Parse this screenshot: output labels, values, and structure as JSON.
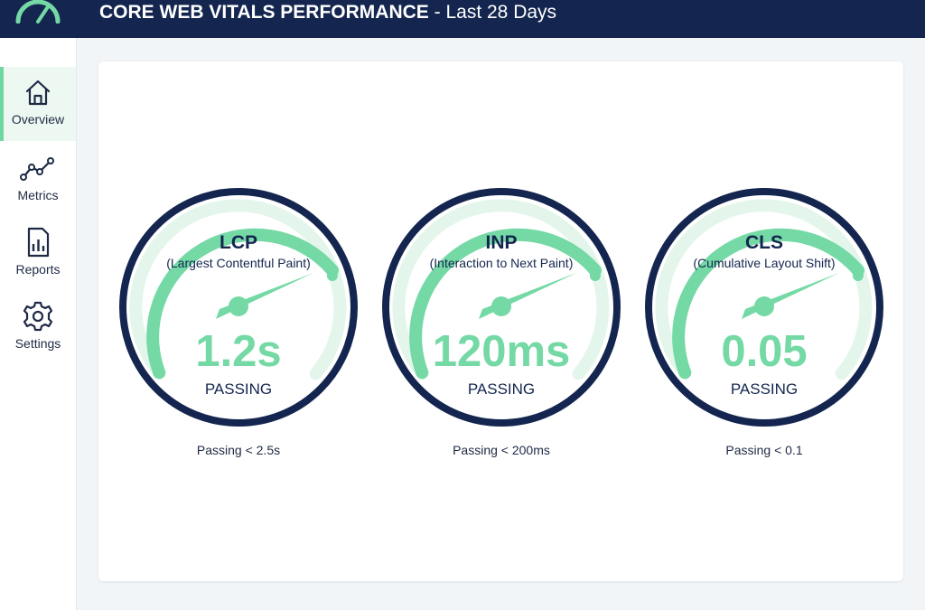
{
  "header": {
    "title_bold": "CORE WEB VITALS PERFORMANCE",
    "title_separator": " - ",
    "title_period": "Last 28 Days"
  },
  "sidebar": {
    "items": [
      {
        "label": "Overview",
        "icon": "home-icon",
        "active": true
      },
      {
        "label": "Metrics",
        "icon": "line-chart-icon",
        "active": false
      },
      {
        "label": "Reports",
        "icon": "report-icon",
        "active": false
      },
      {
        "label": "Settings",
        "icon": "gear-icon",
        "active": false
      }
    ]
  },
  "colors": {
    "header_bg": "#14264f",
    "gauge_ring": "#14264f",
    "passing": "#74d9a5",
    "track": "#e4f6ec"
  },
  "gauges": [
    {
      "name": "LCP",
      "full_name": "(Largest Contentful Paint)",
      "value": "1.2s",
      "status": "PASSING",
      "threshold": "Passing < 2.5s"
    },
    {
      "name": "INP",
      "full_name": "(Interaction to Next Paint)",
      "value": "120ms",
      "status": "PASSING",
      "threshold": "Passing < 200ms"
    },
    {
      "name": "CLS",
      "full_name": "(Cumulative Layout Shift)",
      "value": "0.05",
      "status": "PASSING",
      "threshold": "Passing < 0.1"
    }
  ]
}
